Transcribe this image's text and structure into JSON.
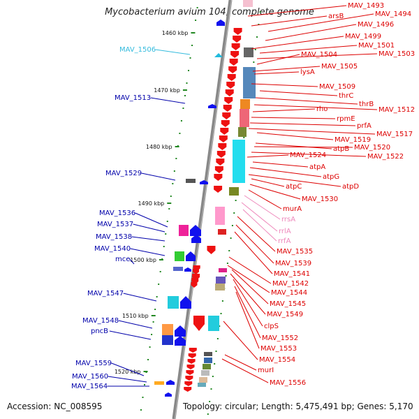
{
  "title": "Mycobacterium avium 104, complete genome",
  "footer": {
    "accession": "Accession: NC_008595",
    "summary": "Topology: circular; Length: 5,475,491 bp; Genes: 5,170"
  },
  "colors": {
    "plus_label": "#dd0000",
    "minus_label": "#0000aa",
    "rrna_label": "#ee88bb",
    "tick": "#228822",
    "backbone": "#888888"
  },
  "kbp_ticks": [
    "1460 kbp",
    "1470 kbp",
    "1480 kbp",
    "1490 kbp",
    "1500 kbp",
    "1510 kbp",
    "1520 kbp"
  ],
  "right_labels": [
    "MAV_1493",
    "arsB",
    "MAV_1494",
    "MAV_1496",
    "MAV_1499",
    "MAV_1501",
    "MAV_1503",
    "MAV_1504",
    "MAV_1505",
    "lysA",
    "MAV_1509",
    "thrC",
    "thrB",
    "MAV_1512",
    "rho",
    "rpmE",
    "prfA",
    "MAV_1517",
    "MAV_1519",
    "atpB",
    "MAV_1520",
    "MAV_1522",
    "MAV_1524",
    "atpA",
    "atpG",
    "atpD",
    "atpC",
    "MAV_1530",
    "murA",
    "rrsA",
    "rrlA",
    "rrfA",
    "MAV_1535",
    "MAV_1539",
    "MAV_1541",
    "MAV_1542",
    "MAV_1544",
    "MAV_1545",
    "MAV_1549",
    "clpS",
    "MAV_1552",
    "MAV_1553",
    "MAV_1554",
    "murI",
    "MAV_1556"
  ],
  "left_labels": [
    "MAV_1506",
    "MAV_1513",
    "MAV_1529",
    "MAV_1536",
    "MAV_1537",
    "MAV_1538",
    "MAV_1540",
    "mce",
    "MAV_1547",
    "MAV_1548",
    "pncB",
    "MAV_1559",
    "MAV_1560",
    "MAV_1564"
  ]
}
